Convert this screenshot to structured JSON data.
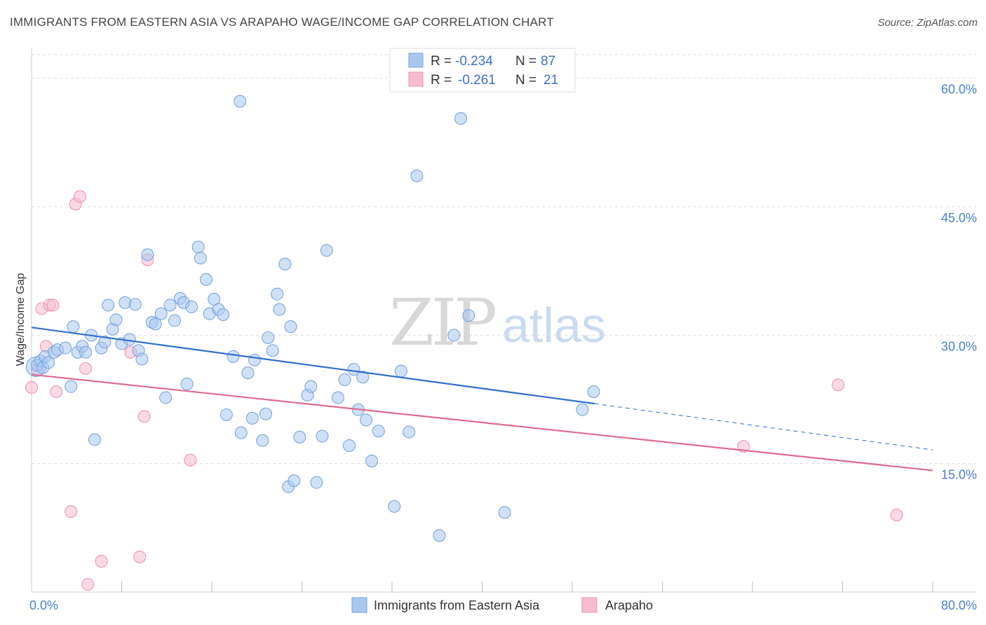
{
  "title": "IMMIGRANTS FROM EASTERN ASIA VS ARAPAHO WAGE/INCOME GAP CORRELATION CHART",
  "source": "Source: ZipAtlas.com",
  "watermark": {
    "zip": "ZIP",
    "atlas": "atlas"
  },
  "colors": {
    "blue_fill": "#a9c8f0",
    "blue_stroke": "#6f9fe0",
    "blue_line": "#2f6fd0",
    "pink_fill": "#f6bccd",
    "pink_stroke": "#ec8fac",
    "pink_line": "#e06a93",
    "tick_label": "#4a7fd4",
    "grid": "#dddddd"
  },
  "legend": {
    "row1": {
      "r_label": "R =",
      "r_value": "-0.234",
      "n_label": "N =",
      "n_value": "87"
    },
    "row2": {
      "r_label": "R =",
      "r_value": "-0.261",
      "n_label": "N =",
      "n_value": "21"
    }
  },
  "chart_data": {
    "type": "scatter",
    "title": "IMMIGRANTS FROM EASTERN ASIA VS ARAPAHO WAGE/INCOME GAP CORRELATION CHART",
    "xlabel": "",
    "ylabel": "Wage/Income Gap",
    "xlim": [
      0,
      80
    ],
    "ylim": [
      0,
      63
    ],
    "x_tick_labels": [
      "0.0%",
      "80.0%"
    ],
    "y_ticks": [
      15,
      30,
      45,
      60
    ],
    "y_tick_labels": [
      "15.0%",
      "30.0%",
      "45.0%",
      "60.0%"
    ],
    "grid": "horizontal dashed",
    "legend_position": "top-center",
    "series": [
      {
        "name": "Immigrants from Eastern Asia",
        "color": "#a9c8f0",
        "R": -0.234,
        "N": 87,
        "trend": {
          "x": [
            0,
            50
          ],
          "y": [
            30.9,
            22.0
          ],
          "dashed_to": [
            80,
            16.6
          ]
        },
        "points": [
          [
            0.5,
            26.5
          ],
          [
            0.8,
            27.0
          ],
          [
            1.0,
            26.2
          ],
          [
            1.2,
            27.5
          ],
          [
            1.5,
            26.8
          ],
          [
            2.0,
            28.0
          ],
          [
            2.3,
            28.3
          ],
          [
            3.0,
            28.5
          ],
          [
            3.5,
            24.0
          ],
          [
            3.7,
            31.0
          ],
          [
            4.1,
            28.0
          ],
          [
            4.5,
            28.7
          ],
          [
            4.8,
            28.0
          ],
          [
            5.3,
            30.0
          ],
          [
            5.6,
            17.8
          ],
          [
            6.2,
            28.5
          ],
          [
            6.5,
            29.2
          ],
          [
            6.8,
            33.5
          ],
          [
            7.2,
            30.7
          ],
          [
            7.5,
            31.8
          ],
          [
            8.0,
            29.0
          ],
          [
            8.3,
            33.8
          ],
          [
            8.7,
            29.5
          ],
          [
            9.2,
            33.6
          ],
          [
            9.5,
            28.2
          ],
          [
            9.8,
            27.2
          ],
          [
            10.3,
            39.4
          ],
          [
            10.7,
            31.5
          ],
          [
            11.0,
            31.3
          ],
          [
            11.5,
            32.5
          ],
          [
            11.9,
            22.7
          ],
          [
            12.3,
            33.5
          ],
          [
            12.7,
            31.7
          ],
          [
            13.2,
            34.3
          ],
          [
            13.5,
            33.8
          ],
          [
            13.8,
            24.3
          ],
          [
            14.2,
            33.3
          ],
          [
            14.8,
            40.3
          ],
          [
            15.0,
            39.0
          ],
          [
            15.5,
            36.5
          ],
          [
            15.8,
            32.5
          ],
          [
            16.2,
            34.2
          ],
          [
            16.6,
            33.0
          ],
          [
            17.0,
            32.4
          ],
          [
            17.3,
            20.7
          ],
          [
            17.9,
            27.5
          ],
          [
            18.5,
            57.3
          ],
          [
            18.6,
            18.6
          ],
          [
            19.2,
            25.6
          ],
          [
            19.6,
            20.3
          ],
          [
            19.8,
            27.1
          ],
          [
            20.5,
            17.7
          ],
          [
            20.8,
            20.8
          ],
          [
            21.0,
            29.7
          ],
          [
            21.4,
            28.2
          ],
          [
            21.8,
            34.8
          ],
          [
            22.0,
            33.0
          ],
          [
            22.5,
            38.3
          ],
          [
            22.8,
            12.3
          ],
          [
            23.0,
            31.0
          ],
          [
            23.3,
            13.0
          ],
          [
            23.8,
            18.1
          ],
          [
            24.5,
            23.0
          ],
          [
            24.8,
            24.0
          ],
          [
            25.3,
            12.8
          ],
          [
            25.8,
            18.2
          ],
          [
            26.2,
            39.9
          ],
          [
            27.2,
            22.7
          ],
          [
            27.8,
            24.8
          ],
          [
            28.2,
            17.1
          ],
          [
            28.6,
            26.0
          ],
          [
            29.0,
            21.3
          ],
          [
            29.4,
            25.1
          ],
          [
            29.7,
            20.1
          ],
          [
            30.2,
            15.3
          ],
          [
            30.8,
            18.8
          ],
          [
            32.2,
            10.0
          ],
          [
            32.8,
            25.8
          ],
          [
            33.5,
            18.7
          ],
          [
            34.2,
            48.6
          ],
          [
            36.2,
            6.6
          ],
          [
            37.5,
            30.0
          ],
          [
            38.1,
            55.3
          ],
          [
            38.8,
            32.3
          ],
          [
            42.0,
            9.3
          ],
          [
            48.9,
            21.3
          ],
          [
            49.9,
            23.4
          ]
        ],
        "big_point": [
          0.4,
          26.3
        ]
      },
      {
        "name": "Arapaho",
        "color": "#f6bccd",
        "R": -0.261,
        "N": 21,
        "trend": {
          "x": [
            0,
            80
          ],
          "y": [
            25.4,
            14.2
          ]
        },
        "points": [
          [
            0.0,
            23.9
          ],
          [
            0.5,
            25.9
          ],
          [
            0.9,
            33.1
          ],
          [
            1.3,
            28.7
          ],
          [
            1.6,
            33.5
          ],
          [
            1.9,
            33.5
          ],
          [
            2.2,
            23.4
          ],
          [
            3.9,
            45.3
          ],
          [
            4.3,
            46.2
          ],
          [
            4.8,
            26.1
          ],
          [
            3.5,
            9.4
          ],
          [
            5.0,
            0.9
          ],
          [
            6.2,
            3.6
          ],
          [
            8.8,
            28.0
          ],
          [
            9.6,
            4.1
          ],
          [
            10.0,
            20.5
          ],
          [
            10.3,
            38.8
          ],
          [
            14.1,
            15.4
          ],
          [
            63.2,
            17.0
          ],
          [
            71.6,
            24.2
          ],
          [
            76.8,
            9.0
          ]
        ]
      }
    ]
  },
  "bottom_legend": {
    "item1": "Immigrants from Eastern Asia",
    "item2": "Arapaho"
  }
}
